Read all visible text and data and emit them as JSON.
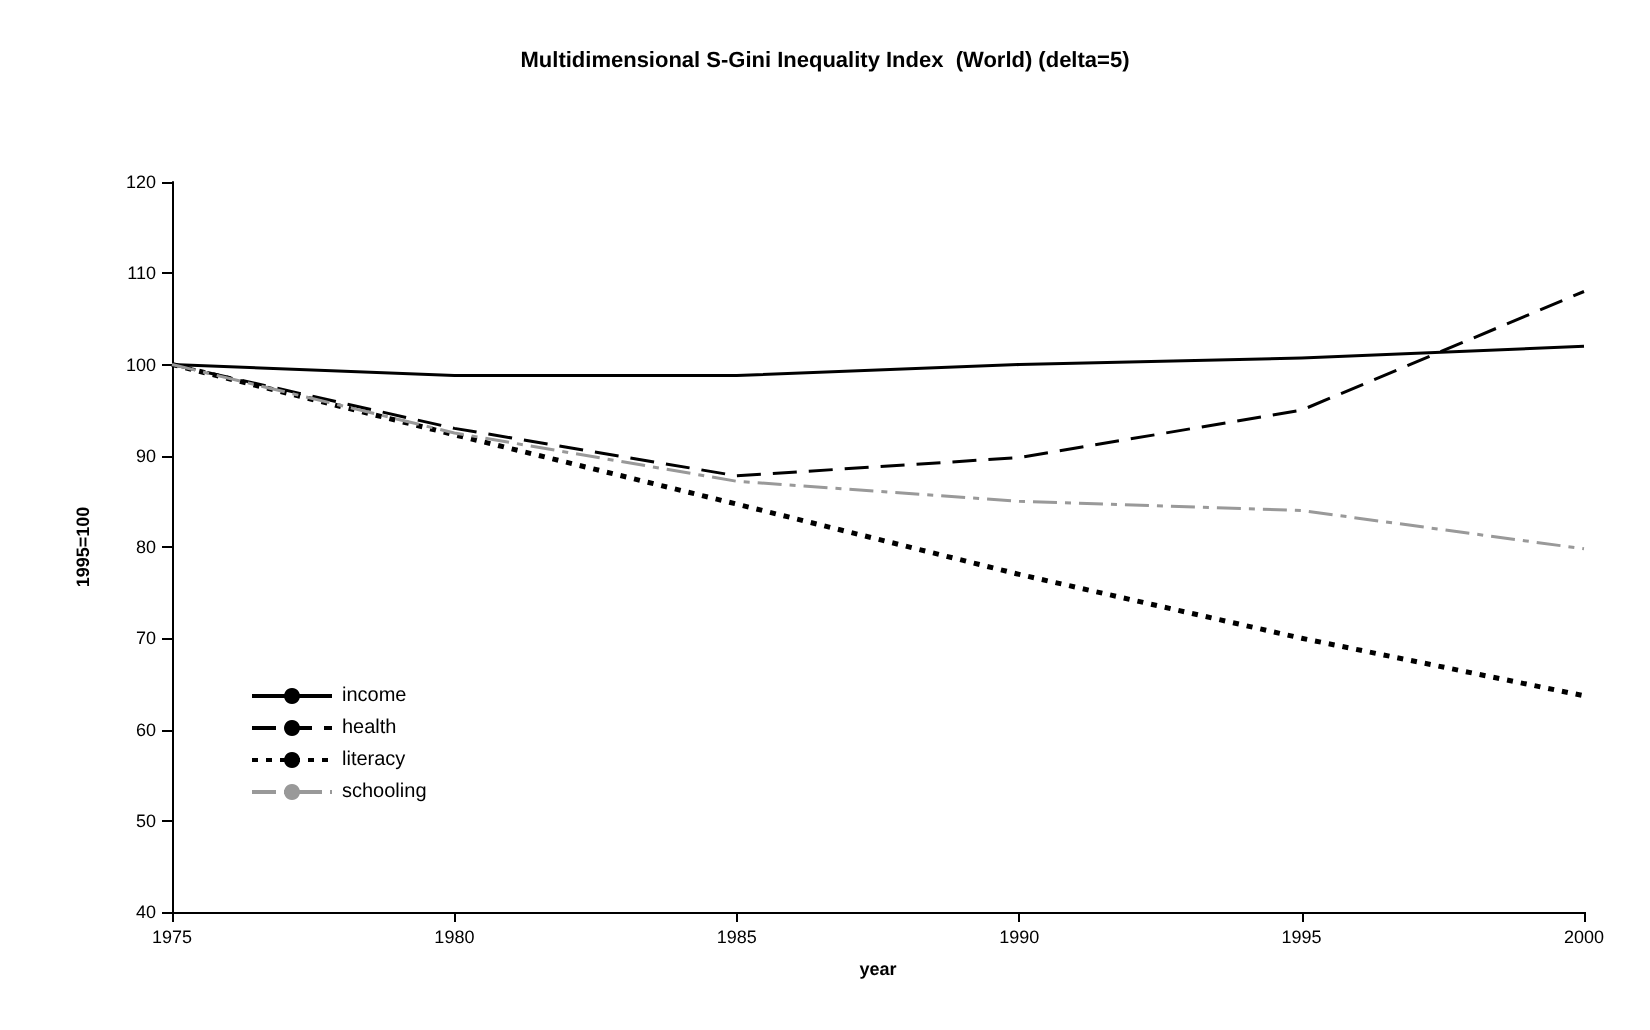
{
  "chart_data": {
    "type": "line",
    "title": "Multidimensional S-Gini Inequality Index  (World) (delta=5)",
    "xlabel": "year",
    "ylabel": "1995=100",
    "x": [
      1975,
      1980,
      1985,
      1990,
      1995,
      2000
    ],
    "xlim": [
      1975,
      2000
    ],
    "xticks": [
      1975,
      1980,
      1985,
      1990,
      1995,
      2000
    ],
    "ylim": [
      40,
      120
    ],
    "yticks": [
      40,
      50,
      60,
      70,
      80,
      90,
      100,
      110,
      120
    ],
    "grid": false,
    "legend": "left",
    "marker": "none",
    "series": [
      {
        "name": "income",
        "color": "#000000",
        "line_style": "solid",
        "values": [
          100,
          98.8,
          98.8,
          100,
          100.7,
          102
        ]
      },
      {
        "name": "health",
        "color": "#000000",
        "line_style": "dashed",
        "values": [
          100,
          93,
          87.8,
          89.8,
          95,
          108
        ]
      },
      {
        "name": "literacy",
        "color": "#000000",
        "line_style": "dotted",
        "values": [
          100,
          92.3,
          84.7,
          77,
          70,
          63.7
        ]
      },
      {
        "name": "schooling",
        "color": "#999999",
        "line_style": "dashdot",
        "values": [
          100,
          92.5,
          87.2,
          85,
          84,
          79.8
        ]
      }
    ]
  }
}
